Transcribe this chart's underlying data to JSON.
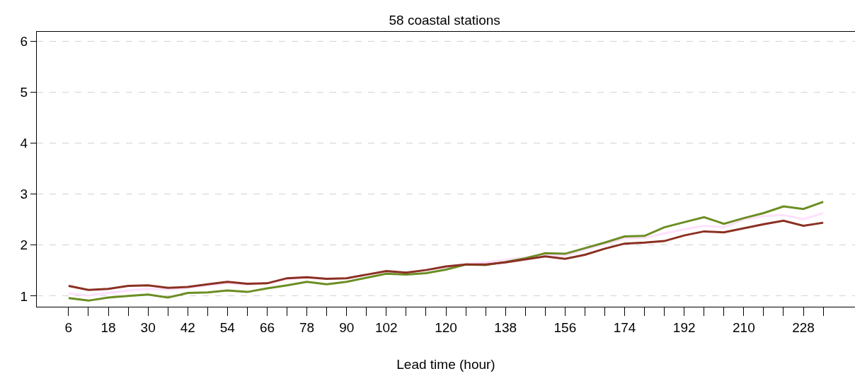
{
  "chart_data": {
    "type": "line",
    "title": "58 coastal stations",
    "xlabel": "Lead time (hour)",
    "x": [
      6,
      12,
      18,
      24,
      30,
      36,
      42,
      48,
      54,
      60,
      66,
      72,
      78,
      84,
      90,
      96,
      102,
      108,
      114,
      120,
      126,
      132,
      138,
      144,
      150,
      156,
      162,
      168,
      174,
      180,
      186,
      192,
      198,
      204,
      210,
      216,
      222,
      228,
      234
    ],
    "series": [
      {
        "color": "#ffe1ff",
        "values": [
          1.05,
          1.01,
          1.06,
          1.11,
          1.14,
          1.13,
          1.16,
          1.21,
          1.25,
          1.22,
          1.25,
          1.33,
          1.36,
          1.33,
          1.36,
          1.42,
          1.48,
          1.46,
          1.51,
          1.56,
          1.63,
          1.66,
          1.71,
          1.76,
          1.81,
          1.79,
          1.91,
          2.02,
          2.13,
          2.14,
          2.23,
          2.31,
          2.38,
          2.35,
          2.5,
          2.57,
          2.59,
          2.51,
          2.63
        ]
      },
      {
        "color": "#6b8e23",
        "values": [
          0.96,
          0.91,
          0.97,
          1.0,
          1.03,
          0.97,
          1.06,
          1.07,
          1.11,
          1.08,
          1.15,
          1.21,
          1.28,
          1.23,
          1.28,
          1.36,
          1.44,
          1.42,
          1.45,
          1.52,
          1.62,
          1.61,
          1.67,
          1.74,
          1.84,
          1.83,
          1.94,
          2.05,
          2.17,
          2.18,
          2.35,
          2.45,
          2.55,
          2.42,
          2.53,
          2.63,
          2.76,
          2.71,
          2.85
        ]
      },
      {
        "color": "#8b3022",
        "values": [
          1.2,
          1.12,
          1.14,
          1.2,
          1.21,
          1.16,
          1.18,
          1.23,
          1.28,
          1.24,
          1.25,
          1.35,
          1.37,
          1.34,
          1.35,
          1.42,
          1.49,
          1.46,
          1.51,
          1.58,
          1.62,
          1.62,
          1.66,
          1.72,
          1.78,
          1.73,
          1.81,
          1.93,
          2.03,
          2.05,
          2.08,
          2.19,
          2.27,
          2.25,
          2.33,
          2.41,
          2.48,
          2.38,
          2.44
        ]
      }
    ],
    "xlim": [
      -3.6,
      243.6
    ],
    "xticks": [
      {
        "value": 6,
        "label": "6"
      },
      {
        "value": 12,
        "label": null
      },
      {
        "value": 18,
        "label": "18"
      },
      {
        "value": 24,
        "label": null
      },
      {
        "value": 30,
        "label": "30"
      },
      {
        "value": 36,
        "label": null
      },
      {
        "value": 42,
        "label": "42"
      },
      {
        "value": 48,
        "label": null
      },
      {
        "value": 54,
        "label": "54"
      },
      {
        "value": 60,
        "label": null
      },
      {
        "value": 66,
        "label": "66"
      },
      {
        "value": 72,
        "label": null
      },
      {
        "value": 78,
        "label": "78"
      },
      {
        "value": 84,
        "label": null
      },
      {
        "value": 90,
        "label": "90"
      },
      {
        "value": 96,
        "label": null
      },
      {
        "value": 102,
        "label": "102"
      },
      {
        "value": 108,
        "label": null
      },
      {
        "value": 114,
        "label": null
      },
      {
        "value": 120,
        "label": "120"
      },
      {
        "value": 126,
        "label": null
      },
      {
        "value": 132,
        "label": null
      },
      {
        "value": 138,
        "label": "138"
      },
      {
        "value": 144,
        "label": null
      },
      {
        "value": 150,
        "label": null
      },
      {
        "value": 156,
        "label": "156"
      },
      {
        "value": 162,
        "label": null
      },
      {
        "value": 168,
        "label": null
      },
      {
        "value": 174,
        "label": "174"
      },
      {
        "value": 180,
        "label": null
      },
      {
        "value": 186,
        "label": null
      },
      {
        "value": 192,
        "label": "192"
      },
      {
        "value": 198,
        "label": null
      },
      {
        "value": 204,
        "label": null
      },
      {
        "value": 210,
        "label": "210"
      },
      {
        "value": 216,
        "label": null
      },
      {
        "value": 222,
        "label": null
      },
      {
        "value": 228,
        "label": "228"
      },
      {
        "value": 234,
        "label": null
      }
    ],
    "ylim": [
      0.79,
      6.19
    ],
    "yticks": [
      1,
      2,
      3,
      4,
      5,
      6
    ],
    "grid": "y",
    "marker": "none",
    "line_style": "solid"
  }
}
